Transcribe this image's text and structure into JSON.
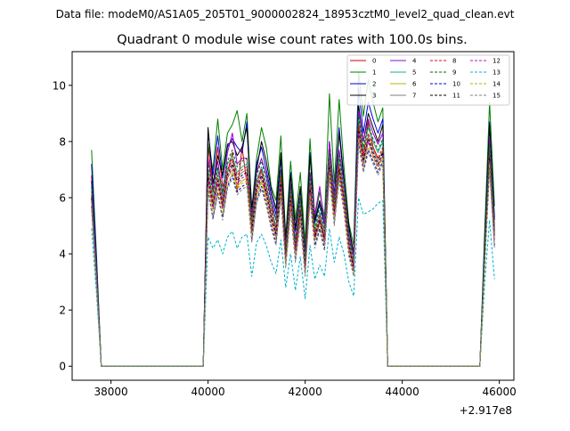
{
  "suptitle": "Data file: modeM0/AS1A05_205T01_9000002824_18953cztM0_level2_quad_clean.evt",
  "chart_data": {
    "type": "line",
    "title": "Quadrant 0 module wise count rates with 100.0s bins.",
    "xlabel": "",
    "ylabel": "",
    "x_offset_label": "+2.917e8",
    "xlim": [
      37200,
      46300
    ],
    "ylim": [
      -0.5,
      11.2
    ],
    "x_ticks": [
      38000,
      40000,
      42000,
      44000,
      46000
    ],
    "x_tick_labels": [
      "38000",
      "40000",
      "42000",
      "44000",
      "46000"
    ],
    "y_ticks": [
      0,
      2,
      4,
      6,
      8,
      10
    ],
    "y_tick_labels": [
      "0",
      "2",
      "4",
      "6",
      "8",
      "10"
    ],
    "legend_position": "top-right",
    "x": [
      37600,
      37700,
      37800,
      39800,
      39900,
      40000,
      40100,
      40200,
      40300,
      40400,
      40500,
      40600,
      40700,
      40800,
      40900,
      41000,
      41100,
      41200,
      41300,
      41400,
      41500,
      41600,
      41700,
      41800,
      41900,
      42000,
      42100,
      42200,
      42300,
      42400,
      42500,
      42600,
      42700,
      42800,
      42900,
      43000,
      43100,
      43200,
      43300,
      43400,
      43500,
      43600,
      43700,
      45500,
      45600,
      45700,
      45800,
      45900
    ],
    "series": [
      {
        "name": "0",
        "color": "#cc0000",
        "dash": "solid",
        "values": [
          6.8,
          3.6,
          0,
          0,
          0,
          7.9,
          6.2,
          7.8,
          6.4,
          6.9,
          7.6,
          6.2,
          7.8,
          6.5,
          5.0,
          6.6,
          7.0,
          6.0,
          5.9,
          4.7,
          6.5,
          4.3,
          6.2,
          4.0,
          5.4,
          3.8,
          6.0,
          4.7,
          5.2,
          4.5,
          7.2,
          5.5,
          7.0,
          6.0,
          4.6,
          3.6,
          8.6,
          7.5,
          8.7,
          7.8,
          7.4,
          7.6,
          0,
          0,
          0,
          4.3,
          8.0,
          4.8
        ]
      },
      {
        "name": "1",
        "color": "#007f00",
        "dash": "solid",
        "values": [
          7.7,
          4.0,
          0,
          0,
          0,
          7.9,
          7.0,
          8.8,
          7.0,
          8.3,
          8.6,
          9.1,
          8.0,
          9.0,
          5.6,
          7.4,
          8.5,
          7.8,
          6.4,
          5.9,
          8.2,
          4.6,
          7.3,
          5.2,
          6.9,
          4.4,
          8.1,
          5.3,
          6.2,
          5.3,
          9.7,
          6.5,
          9.5,
          7.1,
          5.1,
          4.3,
          10.5,
          8.9,
          10.2,
          9.4,
          8.7,
          9.2,
          0,
          0,
          0,
          4.9,
          9.4,
          5.7
        ]
      },
      {
        "name": "2",
        "color": "#0000dd",
        "dash": "solid",
        "values": [
          7.2,
          3.8,
          0,
          0,
          0,
          8.4,
          6.8,
          8.2,
          6.7,
          7.8,
          8.1,
          7.8,
          7.6,
          8.7,
          5.3,
          7.2,
          7.8,
          7.0,
          6.1,
          5.4,
          7.4,
          4.4,
          6.9,
          4.8,
          6.3,
          4.0,
          7.6,
          5.1,
          5.8,
          5.0,
          8.0,
          6.1,
          8.5,
          6.7,
          4.9,
          4.0,
          9.9,
          8.3,
          9.4,
          8.8,
          8.3,
          8.8,
          0,
          0,
          0,
          4.6,
          8.7,
          5.3
        ]
      },
      {
        "name": "3",
        "color": "#000000",
        "dash": "solid",
        "values": [
          6.6,
          3.5,
          0,
          0,
          0,
          8.5,
          6.5,
          7.5,
          6.8,
          7.9,
          8.0,
          7.5,
          7.8,
          8.5,
          5.6,
          7.0,
          8.0,
          7.3,
          6.3,
          5.6,
          7.6,
          4.5,
          6.8,
          4.9,
          6.4,
          4.0,
          7.5,
          5.2,
          5.9,
          5.1,
          7.9,
          6.0,
          8.3,
          6.6,
          5.0,
          4.0,
          9.3,
          8.0,
          9.0,
          8.5,
          8.0,
          8.6,
          0,
          0,
          0,
          4.4,
          8.6,
          5.2
        ]
      },
      {
        "name": "4",
        "color": "#9900cc",
        "dash": "solid",
        "values": [
          6.5,
          3.4,
          0,
          0,
          0,
          7.4,
          6.3,
          7.3,
          6.1,
          7.6,
          8.3,
          7.2,
          7.4,
          7.4,
          5.3,
          6.9,
          7.4,
          6.8,
          5.9,
          5.2,
          7.0,
          4.2,
          6.5,
          4.5,
          6.0,
          3.9,
          6.9,
          5.4,
          6.4,
          5.0,
          8.0,
          6.0,
          7.7,
          6.5,
          4.7,
          3.9,
          9.1,
          8.0,
          8.8,
          8.3,
          7.9,
          8.3,
          0,
          0,
          0,
          4.2,
          8.1,
          5.0
        ]
      },
      {
        "name": "5",
        "color": "#1fa896",
        "dash": "solid",
        "values": [
          6.3,
          3.3,
          0,
          0,
          0,
          7.0,
          6.0,
          7.0,
          6.0,
          7.2,
          7.5,
          6.9,
          7.1,
          7.2,
          5.0,
          6.6,
          7.1,
          6.5,
          5.6,
          5.0,
          6.8,
          4.0,
          6.2,
          4.3,
          5.8,
          3.7,
          6.6,
          4.8,
          5.5,
          4.7,
          7.5,
          5.7,
          7.4,
          6.2,
          4.5,
          3.7,
          8.8,
          7.7,
          8.5,
          8.0,
          7.6,
          8.0,
          0,
          0,
          0,
          4.1,
          7.8,
          4.8
        ]
      },
      {
        "name": "6",
        "color": "#b5b500",
        "dash": "solid",
        "values": [
          6.0,
          3.1,
          0,
          0,
          0,
          6.5,
          5.6,
          6.5,
          5.6,
          6.7,
          7.0,
          6.4,
          6.6,
          6.7,
          4.7,
          6.1,
          6.6,
          6.0,
          5.2,
          4.6,
          6.3,
          3.8,
          5.8,
          4.0,
          5.4,
          3.4,
          6.2,
          4.5,
          5.1,
          4.4,
          7.0,
          5.3,
          6.9,
          5.8,
          4.2,
          3.4,
          8.3,
          7.2,
          8.0,
          7.5,
          7.1,
          7.5,
          0,
          0,
          0,
          3.9,
          7.3,
          4.5
        ]
      },
      {
        "name": "7",
        "color": "#7f7f7f",
        "dash": "solid",
        "values": [
          6.2,
          3.2,
          0,
          0,
          0,
          6.8,
          5.8,
          6.7,
          5.8,
          6.9,
          7.3,
          6.7,
          6.9,
          7.0,
          4.9,
          6.4,
          6.9,
          6.3,
          5.4,
          4.8,
          6.6,
          3.9,
          6.0,
          4.1,
          5.6,
          3.5,
          6.4,
          4.6,
          5.3,
          4.5,
          7.2,
          5.5,
          7.1,
          6.0,
          4.3,
          3.5,
          8.5,
          7.4,
          8.2,
          7.7,
          7.3,
          7.7,
          0,
          0,
          0,
          4.0,
          7.5,
          4.6
        ]
      },
      {
        "name": "8",
        "color": "#ee0000",
        "dash": "dashed",
        "values": [
          6.1,
          3.2,
          0,
          0,
          0,
          6.9,
          5.9,
          6.8,
          5.9,
          7.0,
          7.4,
          6.8,
          7.0,
          7.1,
          4.9,
          6.5,
          7.0,
          6.4,
          5.5,
          4.9,
          6.7,
          3.9,
          6.1,
          4.2,
          5.7,
          3.6,
          6.5,
          4.7,
          5.4,
          4.6,
          7.3,
          5.6,
          7.2,
          6.1,
          4.4,
          3.6,
          8.6,
          7.5,
          8.3,
          7.8,
          7.4,
          7.8,
          0,
          0,
          0,
          4.0,
          7.6,
          4.7
        ]
      },
      {
        "name": "9",
        "color": "#006600",
        "dash": "dashed",
        "values": [
          6.4,
          3.3,
          0,
          0,
          0,
          7.2,
          6.2,
          7.1,
          6.2,
          7.3,
          7.7,
          7.1,
          7.3,
          7.4,
          5.2,
          6.8,
          7.3,
          6.7,
          5.8,
          5.2,
          7.0,
          4.1,
          6.4,
          4.4,
          6.0,
          3.8,
          6.8,
          4.9,
          5.7,
          4.8,
          7.6,
          5.8,
          7.5,
          6.4,
          4.6,
          3.8,
          8.9,
          7.8,
          8.6,
          8.1,
          7.7,
          8.1,
          0,
          0,
          0,
          4.2,
          7.9,
          4.9
        ]
      },
      {
        "name": "10",
        "color": "#0000cc",
        "dash": "dashed",
        "values": [
          5.7,
          3.0,
          0,
          0,
          0,
          6.3,
          5.3,
          6.2,
          5.3,
          6.4,
          6.8,
          6.2,
          6.4,
          6.5,
          4.5,
          5.9,
          6.4,
          5.8,
          5.0,
          4.4,
          6.1,
          3.6,
          5.6,
          3.8,
          5.2,
          3.3,
          6.0,
          4.3,
          4.9,
          4.2,
          6.8,
          5.1,
          6.7,
          5.6,
          4.0,
          3.3,
          8.0,
          7.0,
          7.7,
          7.3,
          6.9,
          7.3,
          0,
          0,
          0,
          3.7,
          7.1,
          4.3
        ]
      },
      {
        "name": "11",
        "color": "#000000",
        "dash": "dashed",
        "values": [
          6.0,
          3.1,
          0,
          0,
          0,
          6.7,
          5.7,
          6.6,
          5.7,
          6.8,
          7.2,
          6.6,
          6.8,
          6.9,
          4.8,
          6.3,
          6.8,
          6.2,
          5.3,
          4.7,
          6.5,
          3.8,
          5.9,
          4.1,
          5.5,
          3.5,
          6.3,
          4.6,
          5.2,
          4.5,
          7.1,
          5.4,
          7.0,
          5.9,
          4.3,
          3.5,
          8.4,
          7.3,
          8.1,
          7.6,
          7.2,
          7.6,
          0,
          0,
          0,
          3.9,
          7.4,
          4.6
        ]
      },
      {
        "name": "12",
        "color": "#cc00cc",
        "dash": "dashed",
        "values": [
          5.9,
          3.1,
          0,
          0,
          0,
          6.6,
          5.6,
          6.5,
          5.6,
          6.7,
          7.1,
          6.5,
          6.7,
          6.8,
          4.7,
          6.2,
          6.7,
          6.1,
          5.2,
          4.6,
          6.4,
          3.7,
          5.8,
          4.0,
          5.4,
          3.4,
          6.2,
          4.5,
          5.1,
          4.4,
          7.0,
          5.3,
          6.9,
          5.8,
          4.2,
          3.4,
          8.3,
          7.2,
          8.0,
          7.5,
          7.1,
          7.5,
          0,
          0,
          0,
          3.8,
          7.3,
          4.5
        ]
      },
      {
        "name": "13",
        "color": "#00b3cc",
        "dash": "dashed",
        "values": [
          4.9,
          2.6,
          0,
          0,
          0,
          4.6,
          4.2,
          4.5,
          4.0,
          4.6,
          4.8,
          4.2,
          4.6,
          4.7,
          3.2,
          4.4,
          4.7,
          4.3,
          3.7,
          3.3,
          4.5,
          2.8,
          4.0,
          2.7,
          3.9,
          2.4,
          4.3,
          3.1,
          3.6,
          3.2,
          4.9,
          3.7,
          4.6,
          4.0,
          3.0,
          2.5,
          6.0,
          5.4,
          5.5,
          5.6,
          5.8,
          5.9,
          0,
          0,
          0,
          3.0,
          5.2,
          3.1
        ]
      },
      {
        "name": "14",
        "color": "#b3b300",
        "dash": "dashed",
        "values": [
          5.8,
          3.0,
          0,
          0,
          0,
          6.4,
          5.4,
          6.3,
          5.4,
          6.5,
          6.9,
          6.3,
          6.5,
          6.6,
          4.6,
          6.0,
          6.5,
          5.9,
          5.1,
          4.5,
          6.2,
          3.6,
          5.7,
          3.9,
          5.3,
          3.3,
          6.1,
          4.4,
          5.0,
          4.3,
          6.9,
          5.2,
          6.8,
          5.7,
          4.1,
          3.3,
          8.1,
          7.1,
          7.8,
          7.4,
          7.0,
          7.4,
          0,
          0,
          0,
          3.8,
          7.2,
          4.4
        ]
      },
      {
        "name": "15",
        "color": "#7f7f7f",
        "dash": "dashed",
        "values": [
          5.6,
          2.9,
          0,
          0,
          0,
          6.2,
          5.2,
          6.1,
          5.2,
          6.3,
          6.7,
          6.1,
          6.3,
          6.4,
          4.4,
          5.8,
          6.3,
          5.7,
          4.9,
          4.3,
          6.0,
          3.5,
          5.5,
          3.7,
          5.1,
          3.2,
          5.9,
          4.2,
          4.8,
          4.1,
          6.7,
          5.0,
          6.6,
          5.5,
          3.9,
          3.2,
          7.9,
          6.9,
          7.6,
          7.2,
          6.8,
          7.2,
          0,
          0,
          0,
          3.6,
          7.0,
          4.2
        ]
      }
    ]
  }
}
